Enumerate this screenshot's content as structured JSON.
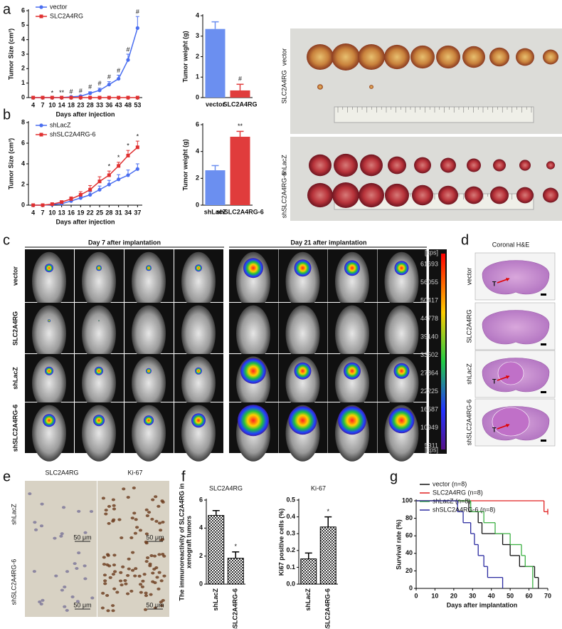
{
  "panel_labels": [
    "a",
    "b",
    "c",
    "d",
    "e",
    "f",
    "g"
  ],
  "chart_data": [
    {
      "type": "line",
      "ylabel": "Tumor Size (cm³)",
      "xlabel": "Days after injection",
      "categories": [
        "4",
        "7",
        "10",
        "14",
        "18",
        "23",
        "28",
        "33",
        "36",
        "43",
        "48",
        "53"
      ],
      "series": [
        {
          "name": "vector",
          "color": "#4a6ef0",
          "marker": "circle",
          "values": [
            0,
            0,
            0,
            0,
            0.05,
            0.1,
            0.3,
            0.5,
            0.9,
            1.3,
            2.6,
            4.8
          ],
          "errors": [
            0,
            0,
            0,
            0.02,
            0.03,
            0.05,
            0.1,
            0.15,
            0.2,
            0.25,
            0.4,
            0.8
          ]
        },
        {
          "name": "SLC2A4RG",
          "color": "#e03030",
          "marker": "square",
          "values": [
            0,
            0,
            0,
            0,
            0,
            0,
            0,
            0,
            0,
            0,
            0,
            0
          ],
          "errors": [
            0,
            0,
            0,
            0,
            0,
            0,
            0,
            0,
            0,
            0,
            0,
            0
          ]
        }
      ],
      "sig_labels": [
        null,
        null,
        "*",
        "**",
        "#",
        "#",
        "#",
        "#",
        "#",
        "#",
        "#",
        "#"
      ],
      "ylim": [
        0,
        6
      ],
      "yticks": [
        0,
        1,
        2,
        3,
        4,
        5,
        6
      ]
    },
    {
      "type": "bar",
      "ylabel": "Tumor weight (g)",
      "categories": [
        "vector",
        "SLC2A4RG"
      ],
      "values": [
        3.35,
        0.35
      ],
      "errors": [
        0.35,
        0.3
      ],
      "colors": [
        "#6b8ff0",
        "#e03c3c"
      ],
      "sig_labels": [
        null,
        "#"
      ],
      "ylim": [
        0,
        4
      ],
      "yticks": [
        0,
        1,
        2,
        3,
        4
      ]
    },
    {
      "type": "line",
      "ylabel": "Tumor Size (cm³)",
      "xlabel": "Days after injection",
      "categories": [
        "4",
        "7",
        "10",
        "13",
        "16",
        "19",
        "22",
        "25",
        "28",
        "31",
        "34",
        "37"
      ],
      "series": [
        {
          "name": "shLacZ",
          "color": "#4a6ef0",
          "marker": "circle",
          "values": [
            0,
            0,
            0.05,
            0.15,
            0.4,
            0.7,
            1.0,
            1.5,
            2.0,
            2.5,
            2.9,
            3.5
          ],
          "errors": [
            0,
            0,
            0.03,
            0.08,
            0.15,
            0.2,
            0.3,
            0.35,
            0.4,
            0.45,
            0.5,
            0.5
          ]
        },
        {
          "name": "shSLC2A4RG-6",
          "color": "#e03030",
          "marker": "square",
          "values": [
            0,
            0,
            0.1,
            0.3,
            0.6,
            1.0,
            1.5,
            2.3,
            2.9,
            3.8,
            4.8,
            5.6
          ],
          "errors": [
            0,
            0,
            0.05,
            0.1,
            0.2,
            0.3,
            0.4,
            0.45,
            0.4,
            0.35,
            0.5,
            0.6
          ]
        }
      ],
      "sig_labels": [
        null,
        null,
        null,
        null,
        null,
        null,
        null,
        null,
        "*",
        "*",
        "*",
        "*"
      ],
      "ylim": [
        0,
        8
      ],
      "yticks": [
        0,
        2,
        4,
        6,
        8
      ]
    },
    {
      "type": "bar",
      "ylabel": "Tumor weight (g)",
      "categories": [
        "shLacZ",
        "shSLC2A4RG-6"
      ],
      "values": [
        2.6,
        5.1
      ],
      "errors": [
        0.35,
        0.4
      ],
      "colors": [
        "#6b8ff0",
        "#e03c3c"
      ],
      "sig_labels": [
        null,
        "**"
      ],
      "ylim": [
        0,
        6
      ],
      "yticks": [
        0,
        2,
        4,
        6
      ]
    },
    {
      "type": "bar",
      "title": "SLC2A4RG",
      "ylabel_lines": [
        "The immunoreactivity of SLC2A4RG in",
        "xenograft tumors"
      ],
      "categories": [
        "shLacZ",
        "shSLC2A4RG-6"
      ],
      "values": [
        4.9,
        1.85
      ],
      "errors": [
        0.35,
        0.45
      ],
      "colors": [
        "#333333",
        "#333333"
      ],
      "pattern": "checker",
      "rotate_labels": true,
      "sig_labels": [
        null,
        "*"
      ],
      "ylim": [
        0,
        6
      ],
      "yticks": [
        0,
        2,
        4,
        6
      ]
    },
    {
      "type": "bar",
      "title": "Ki-67",
      "ylabel_lines": [
        "Ki67 positive cells (%)"
      ],
      "categories": [
        "shLacZ",
        "shSLC2A4RG-6"
      ],
      "values": [
        0.15,
        0.34
      ],
      "errors": [
        0.035,
        0.06
      ],
      "colors": [
        "#333333",
        "#333333"
      ],
      "pattern": "checker",
      "rotate_labels": true,
      "sig_labels": [
        null,
        "*"
      ],
      "ylim": [
        0,
        0.5
      ],
      "yticks": [
        {
          "value": 0,
          "label": "0.0"
        },
        0.1,
        0.2,
        0.3,
        0.4,
        0.5
      ]
    },
    {
      "type": "step",
      "ylabel": "Survival rate (%)",
      "xlabel": "Days after implantation",
      "series": [
        {
          "name": "vector (n=8)",
          "color": "#111111",
          "x": [
            0,
            28,
            33,
            35,
            46,
            50,
            55,
            63,
            65
          ],
          "values": [
            100,
            87.5,
            75,
            62.5,
            50,
            37.5,
            25,
            12.5,
            0
          ]
        },
        {
          "name": "SLC2A4RG (n=8)",
          "color": "#e02020",
          "x": [
            0,
            68,
            70
          ],
          "values": [
            100,
            87.5,
            87.5
          ]
        },
        {
          "name": "shLacZ (n=8)",
          "color": "#3cb043",
          "x": [
            0,
            29,
            36,
            42,
            50,
            56,
            58,
            62
          ],
          "values": [
            100,
            87.5,
            75,
            62.5,
            50,
            37.5,
            25,
            0
          ]
        },
        {
          "name": "shSLC2A4RG-6 (n=8)",
          "color": "#2a2aa0",
          "x": [
            0,
            22,
            25,
            29,
            31,
            33,
            36,
            38,
            46
          ],
          "values": [
            100,
            87.5,
            75,
            62.5,
            50,
            37.5,
            25,
            12.5,
            0
          ]
        }
      ],
      "xlim": [
        0,
        70
      ],
      "xticks": [
        0,
        10,
        20,
        30,
        40,
        50,
        60,
        70
      ],
      "ylim": [
        0,
        100
      ],
      "yticks": [
        0,
        20,
        40,
        60,
        80,
        100
      ]
    }
  ],
  "photo_a": {
    "labels": [
      "vector",
      "SLC2A4RG"
    ]
  },
  "photo_b": {
    "labels": [
      "shLacZ",
      "shSLC2A4RG-6"
    ]
  },
  "panel_c": {
    "headers": [
      "Day 7 after implantation",
      "Day 21 after implantation"
    ],
    "rows": [
      "vector",
      "SLC2A4RG",
      "shLacZ",
      "shSLC2A4RG-6"
    ],
    "colorbar_ticks": [
      61693,
      56055,
      50417,
      44778,
      39140,
      33502,
      27864,
      22225,
      16587,
      10949,
      5311
    ],
    "unit": "[cps]"
  },
  "panel_d": {
    "title": "Coronal H&E",
    "rows": [
      "vector",
      "SLC2A4RG",
      "shLacZ",
      "shSLC2A4RG-6"
    ],
    "marker": "T"
  },
  "panel_e": {
    "columns": [
      "SLC2A4RG",
      "Ki-67"
    ],
    "rows": [
      "shLacZ",
      "shSLC2A4RG-6"
    ],
    "scale": "50 μm"
  }
}
